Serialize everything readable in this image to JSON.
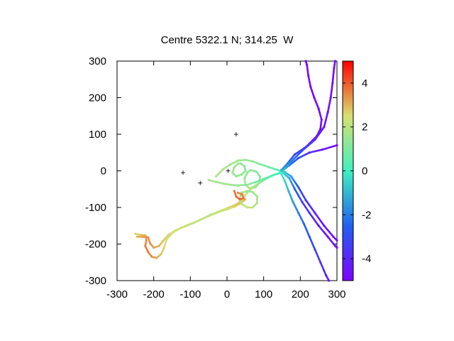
{
  "chart_data": {
    "type": "scatter",
    "title": "Centre 5322.1 N; 314.25  W",
    "xlabel": "",
    "ylabel": "",
    "xlim": [
      -300,
      300
    ],
    "ylim": [
      -300,
      300
    ],
    "xticks": [
      -300,
      -200,
      -100,
      0,
      100,
      200,
      300
    ],
    "yticks": [
      -300,
      -200,
      -100,
      0,
      100,
      200,
      300
    ],
    "colorbar": {
      "min": -5,
      "max": 5,
      "ticks": [
        -4,
        -2,
        0,
        2,
        4
      ],
      "palette": "rainbow"
    },
    "markers": [
      {
        "x": -120,
        "y": -5,
        "symbol": "+",
        "color": "#8b00c8"
      },
      {
        "x": -73,
        "y": -33,
        "symbol": "+",
        "color": "#8b00c8"
      },
      {
        "x": 3,
        "y": 0,
        "symbol": "+",
        "color": "#8b00c8"
      },
      {
        "x": 25,
        "y": 100,
        "symbol": "+",
        "color": "#8b00c8"
      }
    ],
    "series": [
      {
        "points": [
          [
            -250,
            -172
          ],
          [
            -235,
            -175
          ],
          [
            -222,
            -177
          ],
          [
            -220,
            -190
          ],
          [
            -223,
            -205
          ],
          [
            -215,
            -222
          ],
          [
            -205,
            -235
          ],
          [
            -192,
            -238
          ],
          [
            -180,
            -228
          ],
          [
            -172,
            -210
          ],
          [
            -165,
            -188
          ],
          [
            -150,
            -170
          ],
          [
            -125,
            -155
          ],
          [
            -100,
            -145
          ],
          [
            -75,
            -135
          ],
          [
            -45,
            -120
          ],
          [
            -15,
            -108
          ],
          [
            5,
            -100
          ],
          [
            25,
            -92
          ],
          [
            40,
            -80
          ],
          [
            55,
            -60
          ],
          [
            70,
            -45
          ],
          [
            90,
            -32
          ],
          [
            110,
            -20
          ],
          [
            130,
            -10
          ],
          [
            145,
            -5
          ]
        ],
        "color_values": [
          2.6,
          2.8,
          3.1,
          3.4,
          3.6,
          3.6,
          3.4,
          3.1,
          2.8,
          2.6,
          2.4,
          2.3,
          2.2,
          2.1,
          2.0,
          2.2,
          2.4,
          2.6,
          2.8,
          2.6,
          2.2,
          1.8,
          1.4,
          1.0,
          0.6,
          0.2
        ]
      },
      {
        "points": [
          [
            -245,
            -180
          ],
          [
            -230,
            -180
          ],
          [
            -215,
            -182
          ],
          [
            -210,
            -198
          ],
          [
            -200,
            -210
          ],
          [
            -185,
            -205
          ],
          [
            -175,
            -192
          ],
          [
            -160,
            -175
          ],
          [
            -140,
            -162
          ],
          [
            -115,
            -152
          ],
          [
            -90,
            -142
          ],
          [
            -60,
            -128
          ],
          [
            -30,
            -115
          ],
          [
            0,
            -105
          ],
          [
            20,
            -98
          ],
          [
            35,
            -90
          ],
          [
            50,
            -78
          ]
        ],
        "color_values": [
          3.0,
          3.2,
          3.4,
          3.4,
          3.2,
          3.0,
          2.8,
          2.6,
          2.4,
          2.3,
          2.2,
          2.1,
          2.1,
          2.3,
          2.6,
          2.8,
          3.0
        ]
      },
      {
        "points": [
          [
            -30,
            -15
          ],
          [
            -10,
            5
          ],
          [
            10,
            18
          ],
          [
            30,
            28
          ],
          [
            50,
            30
          ],
          [
            70,
            26
          ],
          [
            85,
            20
          ],
          [
            100,
            15
          ],
          [
            115,
            10
          ],
          [
            130,
            5
          ],
          [
            145,
            0
          ],
          [
            160,
            -3
          ]
        ],
        "color_values": [
          1.8,
          1.8,
          1.7,
          1.6,
          1.5,
          1.4,
          1.2,
          1.0,
          0.8,
          0.5,
          0.2,
          -0.2
        ]
      },
      {
        "points": [
          [
            30,
            20
          ],
          [
            20,
            10
          ],
          [
            15,
            -5
          ],
          [
            25,
            -15
          ],
          [
            40,
            -10
          ],
          [
            50,
            0
          ],
          [
            48,
            12
          ],
          [
            38,
            20
          ],
          [
            30,
            20
          ]
        ],
        "color_values": [
          1.6,
          1.5,
          1.5,
          1.4,
          1.3,
          1.2,
          1.2,
          1.3,
          1.6
        ]
      },
      {
        "points": [
          [
            55,
            -5
          ],
          [
            48,
            -20
          ],
          [
            50,
            -38
          ],
          [
            62,
            -48
          ],
          [
            78,
            -45
          ],
          [
            88,
            -32
          ],
          [
            90,
            -15
          ],
          [
            80,
            -2
          ],
          [
            65,
            2
          ],
          [
            55,
            -5
          ]
        ],
        "color_values": [
          1.4,
          1.5,
          1.6,
          1.8,
          1.6,
          1.4,
          1.2,
          1.1,
          1.2,
          1.4
        ]
      },
      {
        "points": [
          [
            40,
            -60
          ],
          [
            35,
            -75
          ],
          [
            40,
            -90
          ],
          [
            55,
            -100
          ],
          [
            70,
            -100
          ],
          [
            82,
            -88
          ],
          [
            82,
            -70
          ],
          [
            70,
            -58
          ],
          [
            55,
            -55
          ],
          [
            40,
            -60
          ]
        ],
        "color_values": [
          1.6,
          1.8,
          2.0,
          2.2,
          2.0,
          1.8,
          1.6,
          1.4,
          1.4,
          1.6
        ]
      },
      {
        "points": [
          [
            -50,
            -25
          ],
          [
            -30,
            -30
          ],
          [
            -10,
            -35
          ],
          [
            10,
            -38
          ],
          [
            30,
            -40
          ],
          [
            55,
            -38
          ],
          [
            80,
            -30
          ],
          [
            105,
            -20
          ],
          [
            125,
            -12
          ],
          [
            145,
            -6
          ]
        ],
        "color_values": [
          1.8,
          1.7,
          1.6,
          1.5,
          1.4,
          1.2,
          0.9,
          0.6,
          0.3,
          0.0
        ]
      },
      {
        "points": [
          [
            20,
            -55
          ],
          [
            25,
            -70
          ],
          [
            35,
            -78
          ],
          [
            45,
            -75
          ],
          [
            42,
            -65
          ],
          [
            30,
            -60
          ]
        ],
        "color_values": [
          3.6,
          3.8,
          3.9,
          3.8,
          3.6,
          3.5
        ]
      },
      {
        "points": [
          [
            148,
            -8
          ],
          [
            158,
            -28
          ],
          [
            168,
            -55
          ],
          [
            180,
            -85
          ],
          [
            195,
            -115
          ],
          [
            210,
            -145
          ],
          [
            225,
            -180
          ],
          [
            240,
            -215
          ],
          [
            255,
            -250
          ],
          [
            270,
            -285
          ],
          [
            278,
            -300
          ]
        ],
        "color_values": [
          0.0,
          -0.5,
          -1.0,
          -1.5,
          -2.0,
          -2.4,
          -2.8,
          -3.2,
          -3.6,
          -4.0,
          -4.3
        ]
      },
      {
        "points": [
          [
            152,
            -5
          ],
          [
            170,
            -20
          ],
          [
            185,
            -50
          ],
          [
            205,
            -85
          ],
          [
            225,
            -115
          ],
          [
            250,
            -150
          ],
          [
            275,
            -180
          ],
          [
            295,
            -205
          ],
          [
            300,
            -210
          ]
        ],
        "color_values": [
          -0.3,
          -1.2,
          -2.4,
          -3.4,
          -3.8,
          -4.2,
          -4.5,
          -4.7,
          -4.8
        ]
      },
      {
        "points": [
          [
            155,
            -2
          ],
          [
            175,
            -15
          ],
          [
            195,
            -45
          ],
          [
            215,
            -80
          ],
          [
            240,
            -115
          ],
          [
            265,
            -150
          ],
          [
            290,
            -180
          ],
          [
            300,
            -190
          ]
        ],
        "color_values": [
          -0.4,
          -1.5,
          -2.8,
          -3.6,
          -4.1,
          -4.4,
          -4.7,
          -4.8
        ]
      },
      {
        "points": [
          [
            150,
            0
          ],
          [
            170,
            15
          ],
          [
            195,
            35
          ],
          [
            225,
            50
          ],
          [
            260,
            58
          ],
          [
            300,
            70
          ]
        ],
        "color_values": [
          -1.0,
          -2.0,
          -3.0,
          -3.8,
          -4.4,
          -4.8
        ]
      },
      {
        "points": [
          [
            148,
            2
          ],
          [
            165,
            20
          ],
          [
            185,
            45
          ],
          [
            215,
            65
          ],
          [
            245,
            95
          ],
          [
            255,
            115
          ],
          [
            258,
            140
          ],
          [
            250,
            170
          ],
          [
            238,
            200
          ],
          [
            228,
            230
          ],
          [
            222,
            260
          ],
          [
            218,
            290
          ],
          [
            215,
            300
          ]
        ],
        "color_values": [
          -1.2,
          -2.2,
          -3.2,
          -4.0,
          -4.4,
          -4.6,
          -4.7,
          -4.8,
          -4.8,
          -4.8,
          -4.8,
          -4.8,
          -4.8
        ]
      },
      {
        "points": [
          [
            152,
            0
          ],
          [
            175,
            25
          ],
          [
            205,
            55
          ],
          [
            240,
            85
          ],
          [
            265,
            120
          ],
          [
            275,
            160
          ],
          [
            283,
            200
          ],
          [
            288,
            240
          ],
          [
            292,
            280
          ],
          [
            295,
            300
          ]
        ],
        "color_values": [
          -0.8,
          -1.8,
          -3.0,
          -3.9,
          -4.4,
          -4.6,
          -4.7,
          -4.8,
          -4.8,
          -4.8
        ]
      }
    ]
  }
}
